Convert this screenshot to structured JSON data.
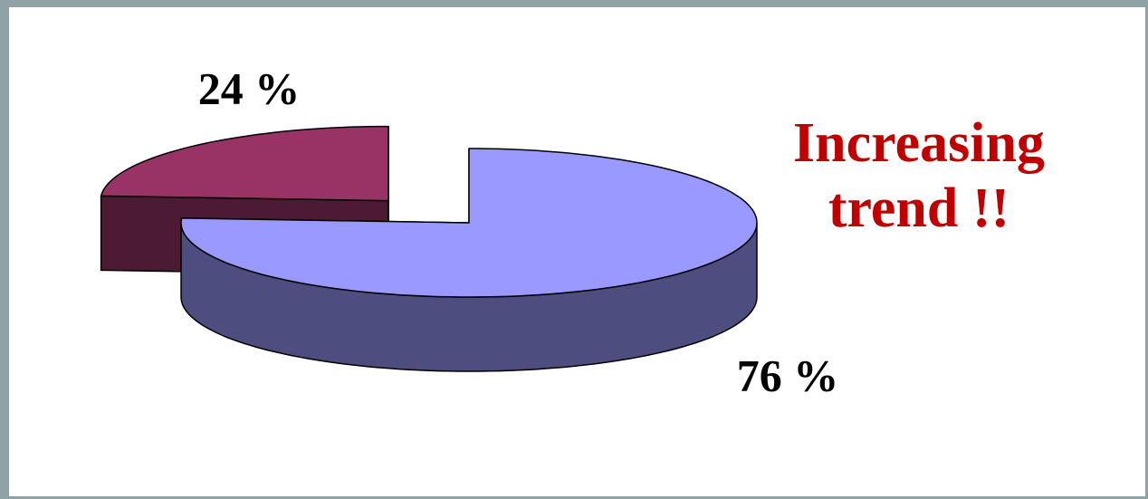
{
  "chart_data": {
    "type": "pie",
    "values": [
      76,
      24
    ],
    "value_labels": [
      "76 %",
      "24 %"
    ],
    "colors": [
      "#9999ff",
      "#993366"
    ],
    "exploded": [
      false,
      true
    ],
    "annotation": "Increasing trend !!"
  }
}
